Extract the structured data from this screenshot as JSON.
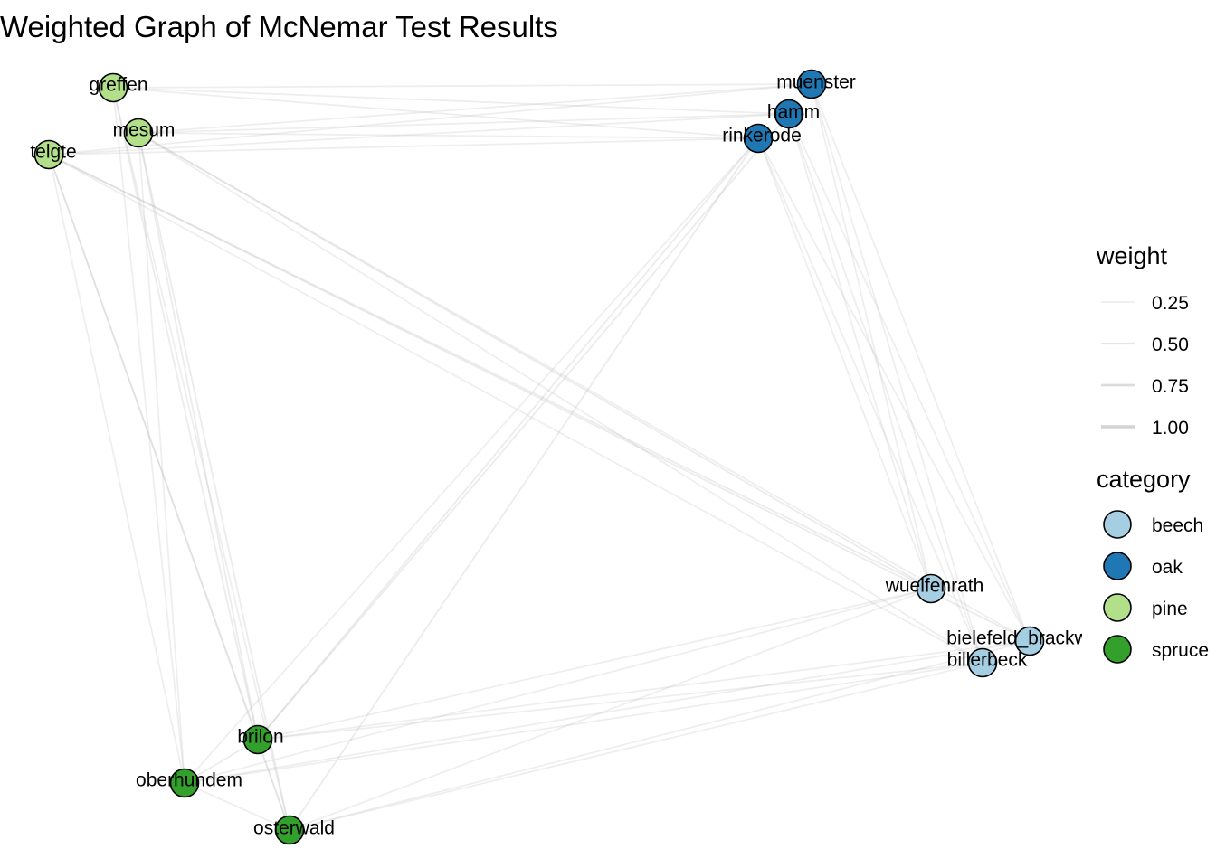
{
  "title": "Weighted Graph of McNemar Test Results",
  "colors": {
    "beech": "#a6cee3",
    "oak": "#1f78b4",
    "pine": "#b2df8a",
    "spruce": "#33a02c",
    "edge": "#bdbdbd",
    "node_stroke": "#000000"
  },
  "legend": {
    "weight": {
      "title": "weight",
      "entries": [
        {
          "label": "0.25",
          "value": 0.25
        },
        {
          "label": "0.50",
          "value": 0.5
        },
        {
          "label": "0.75",
          "value": 0.75
        },
        {
          "label": "1.00",
          "value": 1.0
        }
      ]
    },
    "category": {
      "title": "category",
      "entries": [
        {
          "label": "beech",
          "key": "beech"
        },
        {
          "label": "oak",
          "key": "oak"
        },
        {
          "label": "pine",
          "key": "pine"
        },
        {
          "label": "spruce",
          "key": "spruce"
        }
      ]
    }
  },
  "nodes": [
    {
      "id": "greffen",
      "label": "greffen",
      "category": "pine"
    },
    {
      "id": "mesum",
      "label": "mesum",
      "category": "pine"
    },
    {
      "id": "telgte",
      "label": "telgte",
      "category": "pine"
    },
    {
      "id": "muenster",
      "label": "muenster",
      "category": "oak"
    },
    {
      "id": "hamm",
      "label": "hamm",
      "category": "oak"
    },
    {
      "id": "rinkerode",
      "label": "rinkerode",
      "category": "oak"
    },
    {
      "id": "wuelfenrath",
      "label": "wuelfenrath",
      "category": "beech"
    },
    {
      "id": "bielefeld_brackwede",
      "label": "bielefeld_brackwede",
      "category": "beech"
    },
    {
      "id": "billerbeck",
      "label": "billerbeck",
      "category": "beech"
    },
    {
      "id": "brilon",
      "label": "brilon",
      "category": "spruce"
    },
    {
      "id": "oberhundem",
      "label": "oberhundem",
      "category": "spruce"
    },
    {
      "id": "osterwald",
      "label": "osterwald",
      "category": "spruce"
    }
  ],
  "edges": [
    {
      "source": "greffen",
      "target": "muenster",
      "weight": 0.25
    },
    {
      "source": "greffen",
      "target": "hamm",
      "weight": 0.25
    },
    {
      "source": "greffen",
      "target": "rinkerode",
      "weight": 0.25
    },
    {
      "source": "greffen",
      "target": "brilon",
      "weight": 0.3
    },
    {
      "source": "greffen",
      "target": "oberhundem",
      "weight": 0.25
    },
    {
      "source": "greffen",
      "target": "osterwald",
      "weight": 0.25
    },
    {
      "source": "mesum",
      "target": "muenster",
      "weight": 0.25
    },
    {
      "source": "mesum",
      "target": "hamm",
      "weight": 0.25
    },
    {
      "source": "mesum",
      "target": "rinkerode",
      "weight": 0.25
    },
    {
      "source": "mesum",
      "target": "wuelfenrath",
      "weight": 0.3
    },
    {
      "source": "mesum",
      "target": "bielefeld_brackwede",
      "weight": 0.25
    },
    {
      "source": "mesum",
      "target": "billerbeck",
      "weight": 0.25
    },
    {
      "source": "mesum",
      "target": "brilon",
      "weight": 0.3
    },
    {
      "source": "mesum",
      "target": "osterwald",
      "weight": 0.3
    },
    {
      "source": "mesum",
      "target": "oberhundem",
      "weight": 0.25
    },
    {
      "source": "telgte",
      "target": "muenster",
      "weight": 0.25
    },
    {
      "source": "telgte",
      "target": "hamm",
      "weight": 0.25
    },
    {
      "source": "telgte",
      "target": "rinkerode",
      "weight": 0.25
    },
    {
      "source": "telgte",
      "target": "wuelfenrath",
      "weight": 0.3
    },
    {
      "source": "telgte",
      "target": "bielefeld_brackwede",
      "weight": 0.3
    },
    {
      "source": "telgte",
      "target": "billerbeck",
      "weight": 0.25
    },
    {
      "source": "telgte",
      "target": "brilon",
      "weight": 0.3
    },
    {
      "source": "telgte",
      "target": "oberhundem",
      "weight": 0.25
    },
    {
      "source": "telgte",
      "target": "osterwald",
      "weight": 0.25
    },
    {
      "source": "muenster",
      "target": "wuelfenrath",
      "weight": 0.25
    },
    {
      "source": "muenster",
      "target": "bielefeld_brackwede",
      "weight": 0.25
    },
    {
      "source": "muenster",
      "target": "billerbeck",
      "weight": 0.25
    },
    {
      "source": "hamm",
      "target": "wuelfenrath",
      "weight": 0.25
    },
    {
      "source": "hamm",
      "target": "bielefeld_brackwede",
      "weight": 0.25
    },
    {
      "source": "hamm",
      "target": "billerbeck",
      "weight": 0.25
    },
    {
      "source": "hamm",
      "target": "brilon",
      "weight": 0.3
    },
    {
      "source": "rinkerode",
      "target": "wuelfenrath",
      "weight": 0.25
    },
    {
      "source": "rinkerode",
      "target": "bielefeld_brackwede",
      "weight": 0.25
    },
    {
      "source": "rinkerode",
      "target": "billerbeck",
      "weight": 0.25
    },
    {
      "source": "rinkerode",
      "target": "brilon",
      "weight": 0.3
    },
    {
      "source": "rinkerode",
      "target": "oberhundem",
      "weight": 0.25
    },
    {
      "source": "rinkerode",
      "target": "osterwald",
      "weight": 0.3
    },
    {
      "source": "brilon",
      "target": "wuelfenrath",
      "weight": 0.25
    },
    {
      "source": "brilon",
      "target": "bielefeld_brackwede",
      "weight": 0.25
    },
    {
      "source": "brilon",
      "target": "billerbeck",
      "weight": 0.25
    },
    {
      "source": "oberhundem",
      "target": "wuelfenrath",
      "weight": 0.25
    },
    {
      "source": "oberhundem",
      "target": "bielefeld_brackwede",
      "weight": 0.25
    },
    {
      "source": "oberhundem",
      "target": "billerbeck",
      "weight": 0.25
    },
    {
      "source": "osterwald",
      "target": "wuelfenrath",
      "weight": 0.25
    },
    {
      "source": "osterwald",
      "target": "bielefeld_brackwede",
      "weight": 0.25
    },
    {
      "source": "osterwald",
      "target": "billerbeck",
      "weight": 0.25
    },
    {
      "source": "brilon",
      "target": "oberhundem",
      "weight": 0.3
    },
    {
      "source": "brilon",
      "target": "osterwald",
      "weight": 0.25
    },
    {
      "source": "oberhundem",
      "target": "osterwald",
      "weight": 0.25
    }
  ]
}
